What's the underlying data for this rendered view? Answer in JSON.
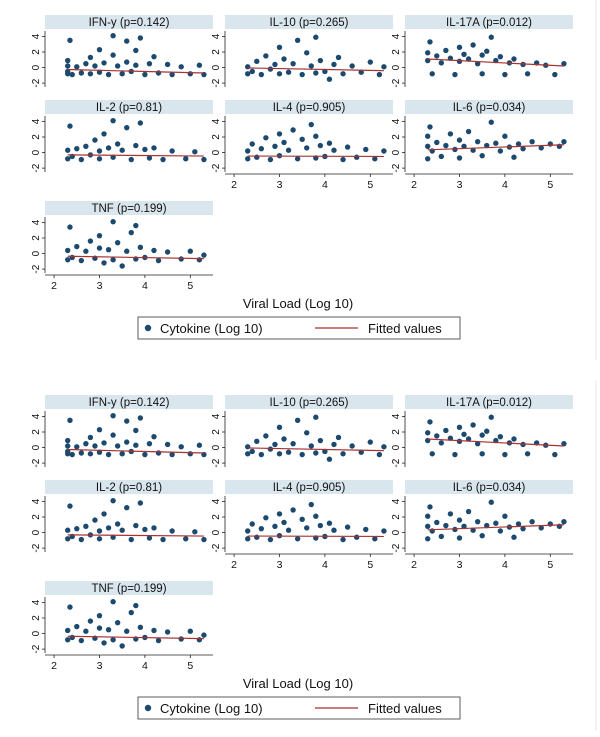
{
  "xlabel": "Viral Load (Log 10)",
  "legend": {
    "scatter_label": "Cytokine (Log 10)",
    "fit_label": "Fitted values"
  },
  "colors": {
    "point": "#1c4a6e",
    "fit": "#a83232",
    "strip": "#d9e6ee"
  },
  "chart_data": [
    {
      "type": "scatter",
      "title": "IFN-y (p=0.142)",
      "xlim": [
        1.8,
        5.5
      ],
      "ylim": [
        -2.5,
        4.7
      ],
      "xticks": [
        2,
        3,
        4,
        5
      ],
      "yticks": [
        -2,
        0,
        2,
        4
      ],
      "fit": {
        "x": [
          2.3,
          5.3
        ],
        "y": [
          -0.25,
          -0.7
        ]
      },
      "series": [
        {
          "values": [
            [
              2.3,
              -0.8
            ],
            [
              2.3,
              -0.5
            ],
            [
              2.3,
              0.2
            ],
            [
              2.3,
              0.9
            ],
            [
              2.35,
              3.5
            ],
            [
              2.4,
              -0.9
            ],
            [
              2.5,
              0.1
            ],
            [
              2.6,
              -0.7
            ],
            [
              2.7,
              0.5
            ],
            [
              2.8,
              1.3
            ],
            [
              2.8,
              -0.8
            ],
            [
              2.9,
              0.2
            ],
            [
              3.0,
              2.3
            ],
            [
              3.0,
              -0.6
            ],
            [
              3.1,
              0.6
            ],
            [
              3.2,
              -0.9
            ],
            [
              3.3,
              4.1
            ],
            [
              3.3,
              1.6
            ],
            [
              3.4,
              0.2
            ],
            [
              3.5,
              -0.8
            ],
            [
              3.6,
              0.7
            ],
            [
              3.6,
              3.4
            ],
            [
              3.7,
              -0.5
            ],
            [
              3.8,
              2.2
            ],
            [
              3.8,
              0.3
            ],
            [
              3.9,
              3.8
            ],
            [
              4.0,
              -0.9
            ],
            [
              4.1,
              0.5
            ],
            [
              4.2,
              1.4
            ],
            [
              4.3,
              -0.7
            ],
            [
              4.5,
              0.4
            ],
            [
              4.6,
              -0.9
            ],
            [
              4.8,
              0.1
            ],
            [
              5.0,
              -0.8
            ],
            [
              5.2,
              0.3
            ],
            [
              5.3,
              -0.9
            ]
          ]
        }
      ]
    },
    {
      "type": "scatter",
      "title": "IL-10  (p=0.265)",
      "xlim": [
        1.8,
        5.5
      ],
      "ylim": [
        -2.5,
        4.7
      ],
      "xticks": [
        2,
        3,
        4,
        5
      ],
      "yticks": [
        -2,
        0,
        2,
        4
      ],
      "fit": {
        "x": [
          2.3,
          5.3
        ],
        "y": [
          -0.05,
          -0.4
        ]
      },
      "series": [
        {
          "values": [
            [
              2.3,
              -0.8
            ],
            [
              2.3,
              0.1
            ],
            [
              2.4,
              -0.5
            ],
            [
              2.5,
              0.8
            ],
            [
              2.6,
              -0.9
            ],
            [
              2.7,
              1.5
            ],
            [
              2.8,
              -0.2
            ],
            [
              2.9,
              0.4
            ],
            [
              3.0,
              2.6
            ],
            [
              3.0,
              -0.8
            ],
            [
              3.1,
              1.1
            ],
            [
              3.2,
              -0.6
            ],
            [
              3.3,
              0.5
            ],
            [
              3.4,
              3.5
            ],
            [
              3.5,
              -0.9
            ],
            [
              3.6,
              1.9
            ],
            [
              3.7,
              0.2
            ],
            [
              3.8,
              -0.7
            ],
            [
              3.8,
              3.9
            ],
            [
              3.9,
              0.9
            ],
            [
              4.0,
              -0.5
            ],
            [
              4.1,
              -1.5
            ],
            [
              4.2,
              0.4
            ],
            [
              4.3,
              1.3
            ],
            [
              4.4,
              -0.8
            ],
            [
              4.6,
              0.2
            ],
            [
              4.8,
              -0.6
            ],
            [
              5.0,
              0.7
            ],
            [
              5.2,
              -0.9
            ],
            [
              5.3,
              0.1
            ]
          ]
        }
      ]
    },
    {
      "type": "scatter",
      "title": "IL-17A (p=0.012)",
      "xlim": [
        1.8,
        5.5
      ],
      "ylim": [
        -2.5,
        4.7
      ],
      "xticks": [
        2,
        3,
        4,
        5
      ],
      "yticks": [
        -2,
        0,
        2,
        4
      ],
      "fit": {
        "x": [
          2.3,
          5.3
        ],
        "y": [
          1.1,
          0.2
        ]
      },
      "series": [
        {
          "values": [
            [
              2.3,
              0.9
            ],
            [
              2.3,
              1.9
            ],
            [
              2.35,
              3.3
            ],
            [
              2.4,
              -0.8
            ],
            [
              2.5,
              1.5
            ],
            [
              2.6,
              0.6
            ],
            [
              2.7,
              2.2
            ],
            [
              2.8,
              1.2
            ],
            [
              2.9,
              -0.9
            ],
            [
              3.0,
              2.6
            ],
            [
              3.0,
              0.8
            ],
            [
              3.1,
              1.7
            ],
            [
              3.2,
              1.1
            ],
            [
              3.3,
              2.9
            ],
            [
              3.4,
              0.5
            ],
            [
              3.5,
              -0.8
            ],
            [
              3.5,
              1.6
            ],
            [
              3.6,
              2.1
            ],
            [
              3.7,
              3.9
            ],
            [
              3.8,
              0.9
            ],
            [
              3.9,
              1.4
            ],
            [
              4.0,
              -0.9
            ],
            [
              4.1,
              0.6
            ],
            [
              4.2,
              1.1
            ],
            [
              4.4,
              0.4
            ],
            [
              4.5,
              -0.8
            ],
            [
              4.7,
              0.6
            ],
            [
              4.9,
              0.3
            ],
            [
              5.1,
              -0.9
            ],
            [
              5.3,
              0.5
            ]
          ]
        }
      ]
    },
    {
      "type": "scatter",
      "title": "IL-2 (p=0.81)",
      "xlim": [
        1.8,
        5.5
      ],
      "ylim": [
        -2.5,
        4.7
      ],
      "xticks": [
        2,
        3,
        4,
        5
      ],
      "yticks": [
        -2,
        0,
        2,
        4
      ],
      "fit": {
        "x": [
          2.3,
          5.3
        ],
        "y": [
          -0.3,
          -0.45
        ]
      },
      "series": [
        {
          "values": [
            [
              2.3,
              -0.8
            ],
            [
              2.3,
              0.3
            ],
            [
              2.35,
              3.4
            ],
            [
              2.4,
              -0.5
            ],
            [
              2.5,
              0.5
            ],
            [
              2.6,
              -0.9
            ],
            [
              2.7,
              0.8
            ],
            [
              2.8,
              -0.3
            ],
            [
              2.9,
              1.6
            ],
            [
              3.0,
              0.2
            ],
            [
              3.0,
              -0.8
            ],
            [
              3.1,
              2.4
            ],
            [
              3.2,
              0.6
            ],
            [
              3.3,
              4.1
            ],
            [
              3.3,
              -0.6
            ],
            [
              3.4,
              1.1
            ],
            [
              3.5,
              0.3
            ],
            [
              3.6,
              3.2
            ],
            [
              3.7,
              -0.9
            ],
            [
              3.8,
              0.9
            ],
            [
              3.9,
              3.8
            ],
            [
              4.0,
              0.4
            ],
            [
              4.1,
              -0.7
            ],
            [
              4.2,
              0.6
            ],
            [
              4.4,
              -0.9
            ],
            [
              4.6,
              0.2
            ],
            [
              4.9,
              -0.8
            ],
            [
              5.1,
              0.1
            ],
            [
              5.3,
              -0.9
            ]
          ]
        }
      ]
    },
    {
      "type": "scatter",
      "title": "IL-4  (p=0.905)",
      "xlim": [
        1.8,
        5.5
      ],
      "ylim": [
        -2.5,
        4.7
      ],
      "xticks": [
        2,
        3,
        4,
        5
      ],
      "yticks": [
        -2,
        0,
        2,
        4
      ],
      "fit": {
        "x": [
          2.3,
          5.3
        ],
        "y": [
          -0.45,
          -0.5
        ]
      },
      "series": [
        {
          "values": [
            [
              2.3,
              -0.8
            ],
            [
              2.3,
              0.2
            ],
            [
              2.4,
              1.1
            ],
            [
              2.5,
              -0.6
            ],
            [
              2.6,
              0.5
            ],
            [
              2.7,
              1.9
            ],
            [
              2.8,
              -0.9
            ],
            [
              2.9,
              0.8
            ],
            [
              3.0,
              2.4
            ],
            [
              3.0,
              -0.4
            ],
            [
              3.1,
              1.3
            ],
            [
              3.2,
              0.3
            ],
            [
              3.3,
              2.9
            ],
            [
              3.4,
              -0.8
            ],
            [
              3.5,
              1.7
            ],
            [
              3.6,
              0.6
            ],
            [
              3.7,
              3.6
            ],
            [
              3.8,
              -0.7
            ],
            [
              3.8,
              2.1
            ],
            [
              3.9,
              0.9
            ],
            [
              4.0,
              -0.5
            ],
            [
              4.1,
              1.2
            ],
            [
              4.2,
              0.3
            ],
            [
              4.4,
              -0.9
            ],
            [
              4.5,
              0.7
            ],
            [
              4.7,
              -0.6
            ],
            [
              4.9,
              0.4
            ],
            [
              5.1,
              -0.8
            ],
            [
              5.3,
              0.2
            ]
          ]
        }
      ]
    },
    {
      "type": "scatter",
      "title": "IL-6  (p=0.034)",
      "xlim": [
        1.8,
        5.5
      ],
      "ylim": [
        -2.5,
        4.7
      ],
      "xticks": [
        2,
        3,
        4,
        5
      ],
      "yticks": [
        -2,
        0,
        2,
        4
      ],
      "fit": {
        "x": [
          2.3,
          5.3
        ],
        "y": [
          0.35,
          1.0
        ]
      },
      "series": [
        {
          "values": [
            [
              2.3,
              -0.8
            ],
            [
              2.3,
              0.8
            ],
            [
              2.3,
              2.1
            ],
            [
              2.35,
              3.3
            ],
            [
              2.4,
              0.2
            ],
            [
              2.5,
              1.3
            ],
            [
              2.6,
              -0.5
            ],
            [
              2.7,
              0.9
            ],
            [
              2.8,
              2.4
            ],
            [
              2.9,
              0.4
            ],
            [
              3.0,
              1.6
            ],
            [
              3.0,
              -0.7
            ],
            [
              3.1,
              0.8
            ],
            [
              3.2,
              2.7
            ],
            [
              3.3,
              0.3
            ],
            [
              3.4,
              1.4
            ],
            [
              3.5,
              -0.4
            ],
            [
              3.6,
              0.9
            ],
            [
              3.7,
              3.9
            ],
            [
              3.8,
              1.2
            ],
            [
              3.9,
              0.2
            ],
            [
              4.0,
              2.1
            ],
            [
              4.1,
              0.7
            ],
            [
              4.2,
              -0.6
            ],
            [
              4.3,
              1.1
            ],
            [
              4.4,
              0.5
            ],
            [
              4.6,
              1.4
            ],
            [
              4.8,
              0.6
            ],
            [
              5.0,
              1.1
            ],
            [
              5.2,
              0.8
            ],
            [
              5.3,
              1.4
            ]
          ]
        }
      ]
    },
    {
      "type": "scatter",
      "title": "TNF  (p=0.199)",
      "xlim": [
        1.8,
        5.5
      ],
      "ylim": [
        -2.5,
        4.7
      ],
      "xticks": [
        2,
        3,
        4,
        5
      ],
      "yticks": [
        -2,
        0,
        2,
        4
      ],
      "fit": {
        "x": [
          2.3,
          5.3
        ],
        "y": [
          -0.35,
          -0.65
        ]
      },
      "series": [
        {
          "values": [
            [
              2.3,
              -0.8
            ],
            [
              2.3,
              0.4
            ],
            [
              2.35,
              3.4
            ],
            [
              2.4,
              -0.5
            ],
            [
              2.5,
              0.9
            ],
            [
              2.6,
              -0.9
            ],
            [
              2.7,
              0.3
            ],
            [
              2.8,
              1.6
            ],
            [
              2.9,
              -0.6
            ],
            [
              3.0,
              0.7
            ],
            [
              3.0,
              2.3
            ],
            [
              3.1,
              -1.2
            ],
            [
              3.2,
              0.5
            ],
            [
              3.3,
              4.1
            ],
            [
              3.3,
              -0.8
            ],
            [
              3.4,
              1.4
            ],
            [
              3.5,
              -1.6
            ],
            [
              3.6,
              0.3
            ],
            [
              3.7,
              2.7
            ],
            [
              3.8,
              -0.7
            ],
            [
              3.8,
              3.6
            ],
            [
              3.9,
              0.8
            ],
            [
              4.0,
              -0.5
            ],
            [
              4.2,
              0.4
            ],
            [
              4.3,
              -0.9
            ],
            [
              4.5,
              0.2
            ],
            [
              4.8,
              -0.7
            ],
            [
              5.0,
              0.3
            ],
            [
              5.2,
              -0.8
            ],
            [
              5.3,
              -0.2
            ]
          ]
        }
      ]
    }
  ]
}
